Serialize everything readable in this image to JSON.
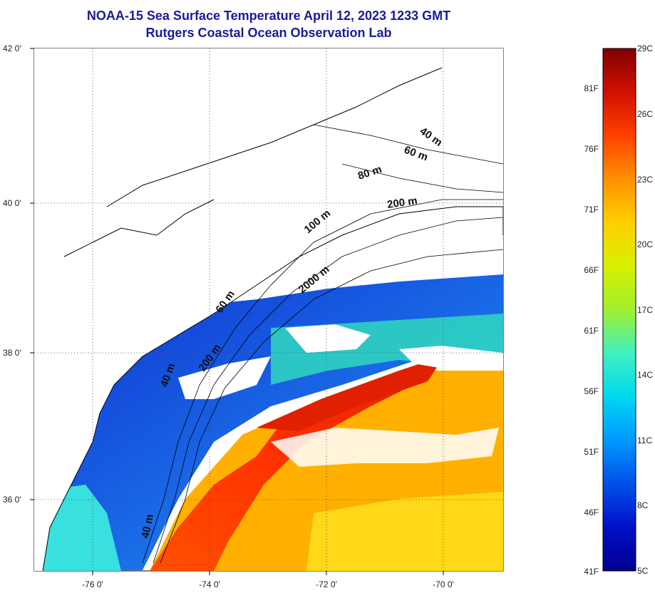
{
  "header": {
    "title_line1": "NOAA-15 Sea Surface Temperature April 12, 2023 1233 GMT",
    "title_line2": "Rutgers Coastal Ocean Observation Lab"
  },
  "map": {
    "lat_labels": [
      "42 0'",
      "40 0'",
      "38 0'",
      "36 0'"
    ],
    "lon_labels": [
      "-76 0'",
      "-74 0'",
      "-72 0'",
      "-70 0'"
    ],
    "isobath_labels": [
      "40 m",
      "60 m",
      "80 m",
      "200 m",
      "100 m",
      "2000 m",
      "60 m",
      "200 m",
      "40 m",
      "40 m"
    ]
  },
  "colorbar": {
    "fahrenheit_labels": [
      "81F",
      "76F",
      "71F",
      "66F",
      "61F",
      "56F",
      "51F",
      "46F",
      "41F"
    ],
    "celsius_labels": [
      "29C",
      "26C",
      "23C",
      "20C",
      "17C",
      "14C",
      "11C",
      "8C",
      "5C"
    ],
    "colors": [
      "#800000",
      "#d01000",
      "#ff4000",
      "#ff9000",
      "#ffd000",
      "#d8f000",
      "#a0f030",
      "#40f0c0",
      "#00d8f0",
      "#0098ff",
      "#0050e8",
      "#0010c8",
      "#000090"
    ]
  }
}
